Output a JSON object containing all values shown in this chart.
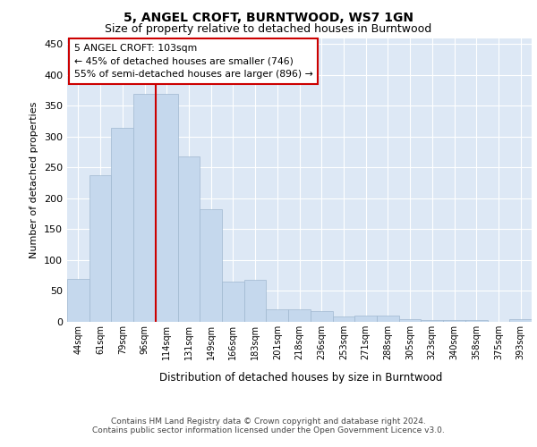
{
  "title": "5, ANGEL CROFT, BURNTWOOD, WS7 1GN",
  "subtitle": "Size of property relative to detached houses in Burntwood",
  "xlabel": "Distribution of detached houses by size in Burntwood",
  "ylabel": "Number of detached properties",
  "categories": [
    "44sqm",
    "61sqm",
    "79sqm",
    "96sqm",
    "114sqm",
    "131sqm",
    "149sqm",
    "166sqm",
    "183sqm",
    "201sqm",
    "218sqm",
    "236sqm",
    "253sqm",
    "271sqm",
    "288sqm",
    "305sqm",
    "323sqm",
    "340sqm",
    "358sqm",
    "375sqm",
    "393sqm"
  ],
  "values": [
    70,
    237,
    315,
    370,
    370,
    268,
    183,
    65,
    68,
    20,
    20,
    17,
    8,
    10,
    10,
    4,
    3,
    3,
    3,
    0,
    4
  ],
  "bar_color": "#c5d8ed",
  "bar_edge_color": "#a0b8d0",
  "vline_x_index": 4,
  "vline_color": "#cc0000",
  "annotation_box_text": "5 ANGEL CROFT: 103sqm\n← 45% of detached houses are smaller (746)\n55% of semi-detached houses are larger (896) →",
  "annotation_box_color": "#cc0000",
  "background_color": "#dde8f5",
  "grid_color": "#ffffff",
  "ylim": [
    0,
    460
  ],
  "yticks": [
    0,
    50,
    100,
    150,
    200,
    250,
    300,
    350,
    400,
    450
  ],
  "title_fontsize": 10,
  "subtitle_fontsize": 9,
  "footer_line1": "Contains HM Land Registry data © Crown copyright and database right 2024.",
  "footer_line2": "Contains public sector information licensed under the Open Government Licence v3.0.",
  "footer_fontsize": 6.5
}
